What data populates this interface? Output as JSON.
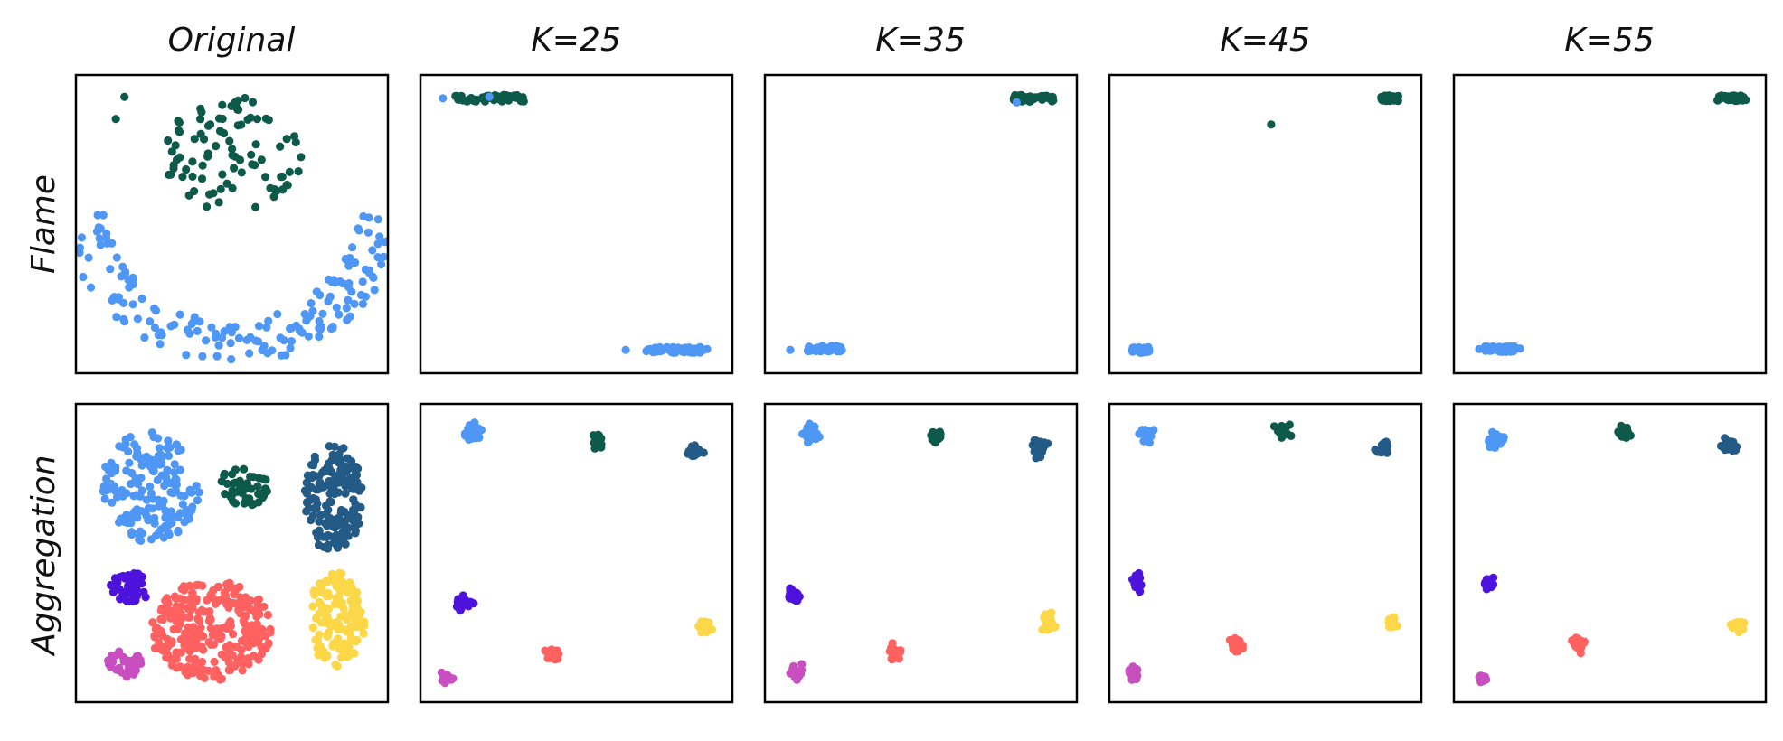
{
  "figure": {
    "column_titles": [
      "Original",
      "K=25",
      "K=35",
      "K=45",
      "K=55"
    ],
    "row_labels": [
      "Flame",
      "Aggregation"
    ],
    "colors": {
      "light_blue": "#4f97f5",
      "dark_green": "#0e5a4a",
      "steel_blue": "#235a86",
      "violet": "#4e12dd",
      "coral": "#ff6060",
      "yellow": "#fcd849",
      "magenta": "#c84fc0"
    }
  },
  "chart_data": [
    {
      "type": "scatter",
      "row": "Flame",
      "column": "Original",
      "xlim": [
        0,
        1
      ],
      "ylim": [
        0,
        1
      ],
      "grid": false,
      "clusters": [
        {
          "color": "dark_green",
          "shape": "disk",
          "center": [
            0.5,
            0.75
          ],
          "spread": [
            0.24,
            0.21
          ],
          "count": 90
        },
        {
          "color": "dark_green",
          "shape": "points",
          "points": [
            [
              0.13,
              0.96
            ],
            [
              0.1,
              0.88
            ]
          ]
        },
        {
          "color": "light_blue",
          "shape": "arc",
          "center": [
            0.5,
            0.62
          ],
          "radius": [
            0.45,
            0.6
          ],
          "angle": [
            190,
            350
          ],
          "count": 170
        }
      ]
    },
    {
      "type": "scatter",
      "row": "Flame",
      "column": "K=25",
      "xlim": [
        0,
        1
      ],
      "ylim": [
        0,
        1
      ],
      "grid": false,
      "clusters": [
        {
          "color": "dark_green",
          "shape": "strip",
          "center": [
            0.2,
            0.955
          ],
          "spread": [
            0.12,
            0.012
          ],
          "count": 60
        },
        {
          "color": "light_blue",
          "shape": "points",
          "points": [
            [
              0.04,
              0.955
            ],
            [
              0.2,
              0.96
            ]
          ]
        },
        {
          "color": "light_blue",
          "shape": "strip",
          "center": [
            0.84,
            0.045
          ],
          "spread": [
            0.1,
            0.01
          ],
          "count": 60
        },
        {
          "color": "light_blue",
          "shape": "points",
          "points": [
            [
              0.67,
              0.045
            ],
            [
              0.95,
              0.048
            ]
          ]
        }
      ]
    },
    {
      "type": "scatter",
      "row": "Flame",
      "column": "K=35",
      "xlim": [
        0,
        1
      ],
      "ylim": [
        0,
        1
      ],
      "grid": false,
      "clusters": [
        {
          "color": "dark_green",
          "shape": "strip",
          "center": [
            0.89,
            0.955
          ],
          "spread": [
            0.07,
            0.012
          ],
          "count": 55
        },
        {
          "color": "light_blue",
          "shape": "points",
          "points": [
            [
              0.83,
              0.94
            ]
          ]
        },
        {
          "color": "light_blue",
          "shape": "strip",
          "center": [
            0.17,
            0.05
          ],
          "spread": [
            0.06,
            0.01
          ],
          "count": 50
        },
        {
          "color": "light_blue",
          "shape": "points",
          "points": [
            [
              0.05,
              0.045
            ]
          ]
        }
      ]
    },
    {
      "type": "scatter",
      "row": "Flame",
      "column": "K=45",
      "xlim": [
        0,
        1
      ],
      "ylim": [
        0,
        1
      ],
      "grid": false,
      "clusters": [
        {
          "color": "dark_green",
          "shape": "strip",
          "center": [
            0.93,
            0.955
          ],
          "spread": [
            0.03,
            0.01
          ],
          "count": 50
        },
        {
          "color": "dark_green",
          "shape": "points",
          "points": [
            [
              0.52,
              0.86
            ]
          ]
        },
        {
          "color": "light_blue",
          "shape": "strip",
          "center": [
            0.07,
            0.045
          ],
          "spread": [
            0.03,
            0.01
          ],
          "count": 50
        }
      ]
    },
    {
      "type": "scatter",
      "row": "Flame",
      "column": "K=55",
      "xlim": [
        0,
        1
      ],
      "ylim": [
        0,
        1
      ],
      "grid": false,
      "clusters": [
        {
          "color": "dark_green",
          "shape": "strip",
          "center": [
            0.92,
            0.955
          ],
          "spread": [
            0.05,
            0.01
          ],
          "count": 50
        },
        {
          "color": "light_blue",
          "shape": "strip",
          "center": [
            0.12,
            0.048
          ],
          "spread": [
            0.05,
            0.01
          ],
          "count": 50
        },
        {
          "color": "light_blue",
          "shape": "points",
          "points": [
            [
              0.05,
              0.048
            ],
            [
              0.19,
              0.05
            ]
          ]
        }
      ]
    },
    {
      "type": "scatter",
      "row": "Aggregation",
      "column": "Original",
      "xlim": [
        0,
        1
      ],
      "ylim": [
        0,
        1
      ],
      "grid": false,
      "clusters": [
        {
          "color": "light_blue",
          "shape": "disk",
          "center": [
            0.22,
            0.74
          ],
          "spread": [
            0.17,
            0.2
          ],
          "count": 170
        },
        {
          "color": "dark_green",
          "shape": "disk",
          "center": [
            0.54,
            0.74
          ],
          "spread": [
            0.09,
            0.07
          ],
          "count": 45
        },
        {
          "color": "steel_blue",
          "shape": "disk",
          "center": [
            0.85,
            0.7
          ],
          "spread": [
            0.1,
            0.2
          ],
          "count": 170
        },
        {
          "color": "violet",
          "shape": "disk",
          "center": [
            0.15,
            0.37
          ],
          "spread": [
            0.07,
            0.06
          ],
          "count": 45
        },
        {
          "color": "coral",
          "shape": "disk",
          "center": [
            0.43,
            0.22
          ],
          "spread": [
            0.21,
            0.18
          ],
          "count": 280
        },
        {
          "color": "yellow",
          "shape": "disk",
          "center": [
            0.86,
            0.26
          ],
          "spread": [
            0.1,
            0.17
          ],
          "count": 130
        },
        {
          "color": "magenta",
          "shape": "disk",
          "center": [
            0.13,
            0.1
          ],
          "spread": [
            0.06,
            0.05
          ],
          "count": 40
        }
      ]
    },
    {
      "type": "scatter",
      "row": "Aggregation",
      "column": "K=25",
      "xlim": [
        0,
        1
      ],
      "ylim": [
        0,
        1
      ],
      "grid": false,
      "clusters": [
        {
          "color": "light_blue",
          "shape": "blob",
          "center": [
            0.15,
            0.94
          ],
          "spread": [
            0.025,
            0.028
          ],
          "count": 30
        },
        {
          "color": "dark_green",
          "shape": "blob",
          "center": [
            0.57,
            0.91
          ],
          "spread": [
            0.02,
            0.028
          ],
          "count": 25
        },
        {
          "color": "steel_blue",
          "shape": "blob",
          "center": [
            0.91,
            0.87
          ],
          "spread": [
            0.022,
            0.025
          ],
          "count": 25
        },
        {
          "color": "violet",
          "shape": "blob",
          "center": [
            0.11,
            0.32
          ],
          "spread": [
            0.025,
            0.025
          ],
          "count": 25
        },
        {
          "color": "coral",
          "shape": "blob",
          "center": [
            0.42,
            0.13
          ],
          "spread": [
            0.025,
            0.025
          ],
          "count": 25
        },
        {
          "color": "yellow",
          "shape": "blob",
          "center": [
            0.94,
            0.23
          ],
          "spread": [
            0.02,
            0.025
          ],
          "count": 25
        },
        {
          "color": "magenta",
          "shape": "blob",
          "center": [
            0.05,
            0.05
          ],
          "spread": [
            0.02,
            0.02
          ],
          "count": 20
        }
      ]
    },
    {
      "type": "scatter",
      "row": "Aggregation",
      "column": "K=35",
      "xlim": [
        0,
        1
      ],
      "ylim": [
        0,
        1
      ],
      "grid": false,
      "clusters": [
        {
          "color": "light_blue",
          "shape": "blob",
          "center": [
            0.12,
            0.93
          ],
          "spread": [
            0.02,
            0.035
          ],
          "count": 30
        },
        {
          "color": "dark_green",
          "shape": "blob",
          "center": [
            0.55,
            0.92
          ],
          "spread": [
            0.02,
            0.025
          ],
          "count": 25
        },
        {
          "color": "steel_blue",
          "shape": "blob",
          "center": [
            0.91,
            0.88
          ],
          "spread": [
            0.022,
            0.025
          ],
          "count": 25
        },
        {
          "color": "violet",
          "shape": "blob",
          "center": [
            0.06,
            0.35
          ],
          "spread": [
            0.02,
            0.025
          ],
          "count": 25
        },
        {
          "color": "coral",
          "shape": "blob",
          "center": [
            0.41,
            0.14
          ],
          "spread": [
            0.02,
            0.025
          ],
          "count": 25
        },
        {
          "color": "yellow",
          "shape": "blob",
          "center": [
            0.94,
            0.25
          ],
          "spread": [
            0.02,
            0.035
          ],
          "count": 25
        },
        {
          "color": "magenta",
          "shape": "blob",
          "center": [
            0.07,
            0.06
          ],
          "spread": [
            0.02,
            0.03
          ],
          "count": 20
        }
      ]
    },
    {
      "type": "scatter",
      "row": "Aggregation",
      "column": "K=45",
      "xlim": [
        0,
        1
      ],
      "ylim": [
        0,
        1
      ],
      "grid": false,
      "clusters": [
        {
          "color": "light_blue",
          "shape": "blob",
          "center": [
            0.09,
            0.93
          ],
          "spread": [
            0.022,
            0.025
          ],
          "count": 25
        },
        {
          "color": "dark_green",
          "shape": "blob",
          "center": [
            0.56,
            0.94
          ],
          "spread": [
            0.02,
            0.025
          ],
          "count": 25
        },
        {
          "color": "steel_blue",
          "shape": "blob",
          "center": [
            0.91,
            0.88
          ],
          "spread": [
            0.02,
            0.022
          ],
          "count": 25
        },
        {
          "color": "violet",
          "shape": "blob",
          "center": [
            0.06,
            0.39
          ],
          "spread": [
            0.018,
            0.025
          ],
          "count": 25
        },
        {
          "color": "coral",
          "shape": "blob",
          "center": [
            0.4,
            0.17
          ],
          "spread": [
            0.02,
            0.025
          ],
          "count": 25
        },
        {
          "color": "yellow",
          "shape": "blob",
          "center": [
            0.94,
            0.25
          ],
          "spread": [
            0.02,
            0.022
          ],
          "count": 20
        },
        {
          "color": "magenta",
          "shape": "blob",
          "center": [
            0.05,
            0.06
          ],
          "spread": [
            0.018,
            0.022
          ],
          "count": 20
        }
      ]
    },
    {
      "type": "scatter",
      "row": "Aggregation",
      "column": "K=55",
      "xlim": [
        0,
        1
      ],
      "ylim": [
        0,
        1
      ],
      "grid": false,
      "clusters": [
        {
          "color": "light_blue",
          "shape": "blob",
          "center": [
            0.11,
            0.91
          ],
          "spread": [
            0.028,
            0.028
          ],
          "count": 30
        },
        {
          "color": "dark_green",
          "shape": "blob",
          "center": [
            0.55,
            0.93
          ],
          "spread": [
            0.022,
            0.025
          ],
          "count": 25
        },
        {
          "color": "steel_blue",
          "shape": "blob",
          "center": [
            0.91,
            0.89
          ],
          "spread": [
            0.025,
            0.028
          ],
          "count": 25
        },
        {
          "color": "violet",
          "shape": "blob",
          "center": [
            0.08,
            0.39
          ],
          "spread": [
            0.018,
            0.022
          ],
          "count": 20
        },
        {
          "color": "coral",
          "shape": "blob",
          "center": [
            0.39,
            0.17
          ],
          "spread": [
            0.02,
            0.025
          ],
          "count": 25
        },
        {
          "color": "yellow",
          "shape": "blob",
          "center": [
            0.94,
            0.24
          ],
          "spread": [
            0.022,
            0.025
          ],
          "count": 25
        },
        {
          "color": "magenta",
          "shape": "blob",
          "center": [
            0.06,
            0.05
          ],
          "spread": [
            0.015,
            0.02
          ],
          "count": 18
        }
      ]
    }
  ]
}
